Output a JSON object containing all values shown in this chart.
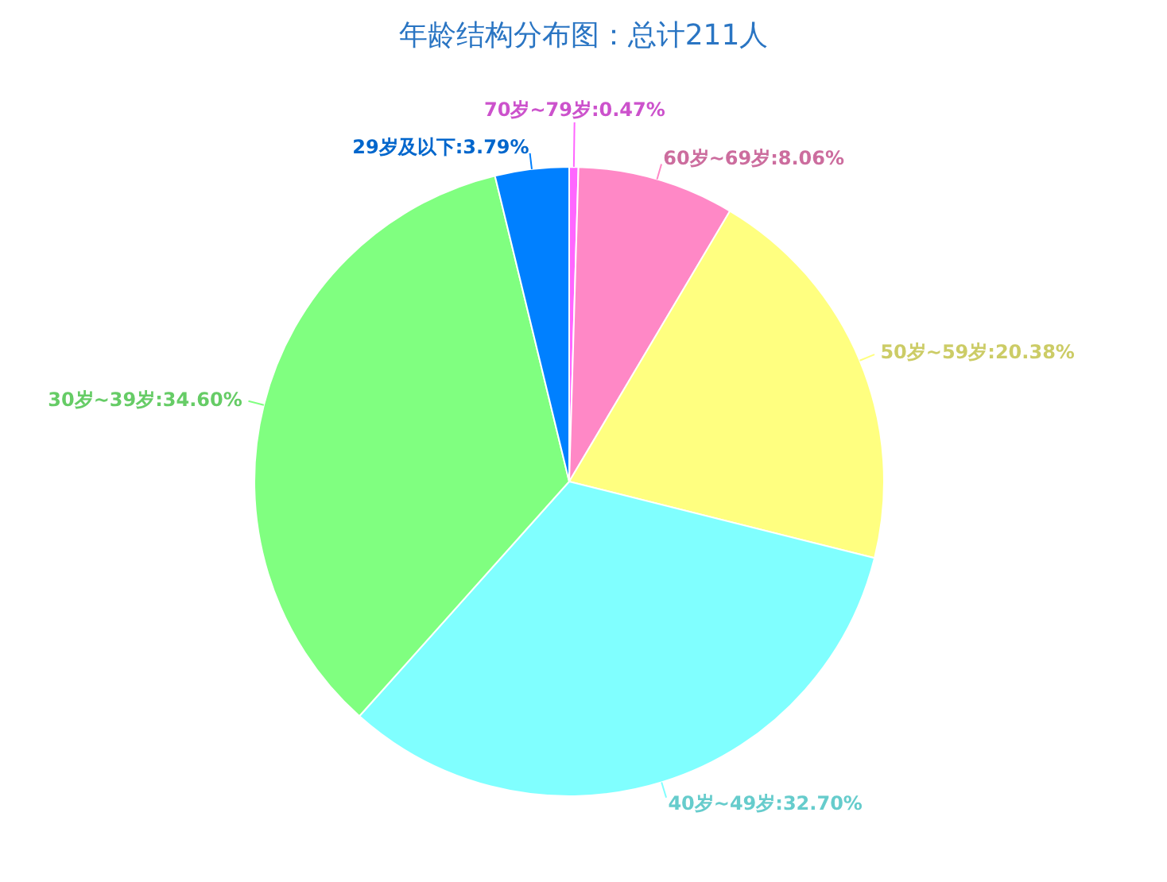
{
  "chart_data": {
    "type": "pie",
    "title": "年龄结构分布图：总计211人",
    "categories": [
      "70岁~79岁",
      "60岁~69岁",
      "50岁~59岁",
      "40岁~49岁",
      "30岁~39岁",
      "29岁及以下"
    ],
    "values": [
      0.47,
      8.06,
      20.38,
      32.7,
      34.6,
      3.79
    ],
    "colors": [
      "#ff66ff",
      "#ff88c6",
      "#ffff80",
      "#80ffff",
      "#80ff80",
      "#0080ff"
    ],
    "value_labels": [
      "0.47%",
      "8.06%",
      "20.38%",
      "32.70%",
      "34.60%",
      "3.79%"
    ],
    "legend": false
  }
}
